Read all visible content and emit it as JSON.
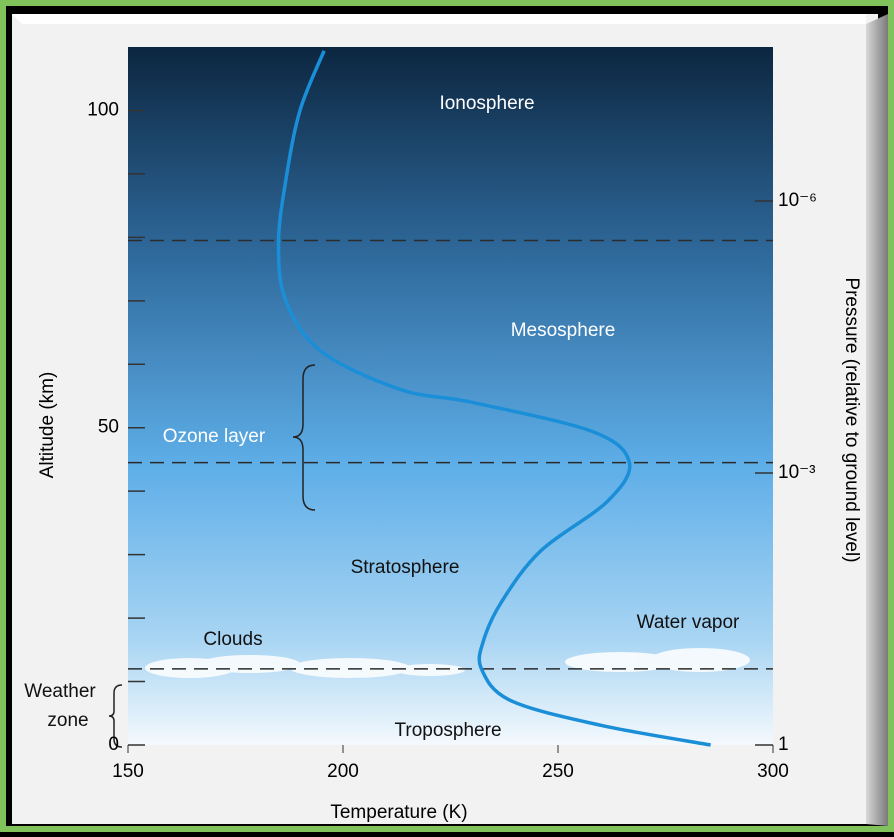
{
  "chart_data": {
    "type": "line",
    "xlabel": "Temperature (K)",
    "ylabel": "Altitude (km)",
    "y2label": "Pressure (relative to ground level)",
    "xlim": [
      150,
      300
    ],
    "ylim": [
      0,
      110
    ],
    "xticks": [
      150,
      200,
      250,
      300
    ],
    "yticks": [
      0,
      50,
      100
    ],
    "y_minor_ticks": [
      10,
      20,
      30,
      40,
      60,
      70,
      80,
      90
    ],
    "y2lim": [
      1,
      2e-08
    ],
    "y2_log": true,
    "y2ticks": [
      1,
      {
        "value": 0.001,
        "label": "10⁻³"
      },
      {
        "value": 1e-06,
        "label": "10⁻⁶"
      }
    ],
    "series": [
      {
        "color": "#1a8fd8",
        "x": [
          285.5,
          260,
          239,
          232.2,
          232.7,
          237,
          246,
          261.5,
          266.6,
          258,
          230,
          213.5,
          195,
          186.7,
          185,
          186.7,
          190,
          195.6
        ],
        "values": [
          0,
          3.1,
          7,
          12,
          16.5,
          22.7,
          30.6,
          38.4,
          44.5,
          49.4,
          54,
          56,
          62,
          70,
          79,
          89,
          100,
          109.4
        ]
      }
    ],
    "dashed_lines": [
      79.5,
      44.5,
      12
    ],
    "annotations": [
      "Ionosphere",
      "Mesosphere",
      "Ozone layer",
      "Stratosphere",
      "Clouds",
      "Water vapor",
      "Troposphere",
      "Weather",
      "zone"
    ]
  }
}
